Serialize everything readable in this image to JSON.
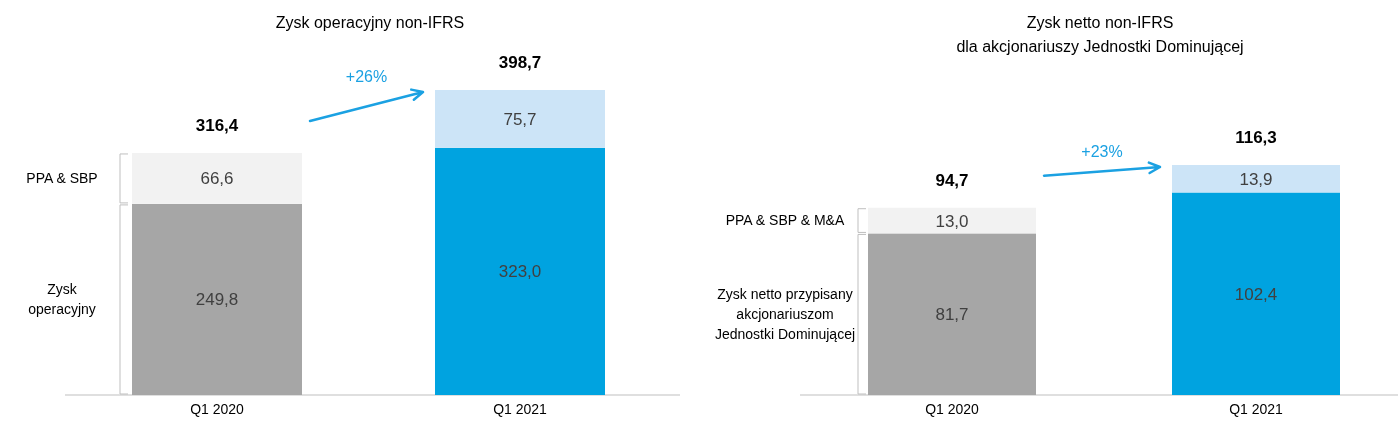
{
  "chart_data": [
    {
      "type": "bar",
      "title": "Zysk operacyjny non-IFRS",
      "stacked": true,
      "categories": [
        "Q1 2020",
        "Q1 2021"
      ],
      "series": [
        {
          "name": "Zysk operacyjny",
          "colors": [
            "#a6a6a6",
            "#00a3e0"
          ],
          "values": [
            249.8,
            323.0
          ],
          "value_labels": [
            "249,8",
            "323,0"
          ]
        },
        {
          "name": "PPA & SBP",
          "colors": [
            "#f2f2f2",
            "#cce4f7"
          ],
          "values": [
            66.6,
            75.7
          ],
          "value_labels": [
            "66,6",
            "75,7"
          ]
        }
      ],
      "totals": [
        "316,4",
        "398,7"
      ],
      "annotations": [
        "+26%"
      ]
    },
    {
      "type": "bar",
      "title": "Zysk netto non-IFRS",
      "subtitle": "dla akcjonariuszy Jednostki Dominującej",
      "stacked": true,
      "categories": [
        "Q1 2020",
        "Q1 2021"
      ],
      "series": [
        {
          "name": "Zysk netto przypisany akcjonariuszom Jednostki Dominującej",
          "colors": [
            "#a6a6a6",
            "#00a3e0"
          ],
          "values": [
            81.7,
            102.4
          ],
          "value_labels": [
            "81,7",
            "102,4"
          ]
        },
        {
          "name": "PPA & SBP & M&A",
          "colors": [
            "#f2f2f2",
            "#cce4f7"
          ],
          "values": [
            13.0,
            13.9
          ],
          "value_labels": [
            "13,0",
            "13,9"
          ]
        }
      ],
      "totals": [
        "94,7",
        "116,3"
      ],
      "annotations": [
        "+23%"
      ]
    }
  ]
}
